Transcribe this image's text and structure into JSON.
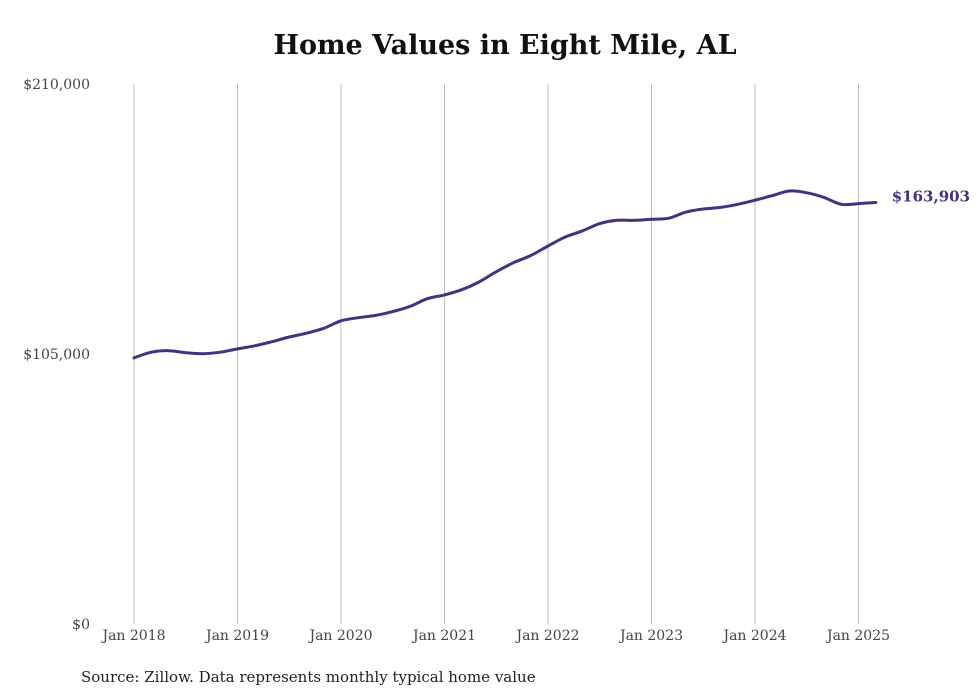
{
  "chart_data": {
    "type": "line",
    "title": "Home Values in Eight Mile, AL",
    "source": "Source: Zillow. Data represents monthly typical home value",
    "end_label": "$163,903",
    "ylim": [
      0,
      210000
    ],
    "xlim": [
      "2018-01",
      "2025-03"
    ],
    "y_ticks": [
      {
        "value": 0,
        "label": "$0"
      },
      {
        "value": 105000,
        "label": "$105,000"
      },
      {
        "value": 210000,
        "label": "$210,000"
      }
    ],
    "x_ticks": [
      {
        "value": "2018-01",
        "label": "Jan 2018"
      },
      {
        "value": "2019-01",
        "label": "Jan 2019"
      },
      {
        "value": "2020-01",
        "label": "Jan 2020"
      },
      {
        "value": "2021-01",
        "label": "Jan 2021"
      },
      {
        "value": "2022-01",
        "label": "Jan 2022"
      },
      {
        "value": "2023-01",
        "label": "Jan 2023"
      },
      {
        "value": "2024-01",
        "label": "Jan 2024"
      },
      {
        "value": "2025-01",
        "label": "Jan 2025"
      }
    ],
    "grid": "vertical",
    "color": "#3c3488",
    "series": [
      {
        "x": [
          "2018-01",
          "2018-03",
          "2018-05",
          "2018-07",
          "2018-09",
          "2018-11",
          "2019-01",
          "2019-03",
          "2019-05",
          "2019-07",
          "2019-09",
          "2019-11",
          "2020-01",
          "2020-03",
          "2020-05",
          "2020-07",
          "2020-09",
          "2020-11",
          "2021-01",
          "2021-03",
          "2021-05",
          "2021-07",
          "2021-09",
          "2021-11",
          "2022-01",
          "2022-03",
          "2022-05",
          "2022-07",
          "2022-09",
          "2022-11",
          "2023-01",
          "2023-03",
          "2023-05",
          "2023-07",
          "2023-09",
          "2023-11",
          "2024-01",
          "2024-03",
          "2024-05",
          "2024-07",
          "2024-09",
          "2024-11",
          "2025-01",
          "2025-03"
        ],
        "values": [
          103500,
          105700,
          106300,
          105500,
          105100,
          105700,
          107000,
          108200,
          109800,
          111600,
          113100,
          115000,
          117900,
          119100,
          120000,
          121500,
          123500,
          126500,
          128000,
          130000,
          133000,
          137000,
          140500,
          143300,
          147000,
          150500,
          152900,
          155700,
          157000,
          157000,
          157400,
          157800,
          160200,
          161400,
          162000,
          163200,
          164800,
          166600,
          168400,
          167700,
          165900,
          163200,
          163500,
          163903
        ]
      }
    ]
  }
}
